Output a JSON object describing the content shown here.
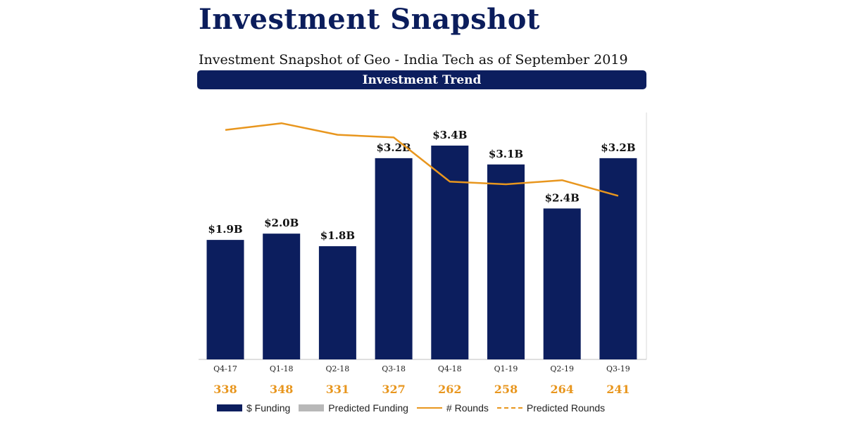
{
  "title": "Investment Snapshot",
  "subtitle": "Investment Snapshot of Geo - India Tech as of September 2019",
  "banner": "Investment Trend",
  "colors": {
    "funding_bar": "#0c1e5e",
    "predicted_bar": "#b8b8b8",
    "rounds_line": "#e8961e",
    "rounds_text": "#e8961e"
  },
  "chart_data": {
    "type": "bar",
    "title": "Investment Trend",
    "categories": [
      "Q4-17",
      "Q1-18",
      "Q2-18",
      "Q3-18",
      "Q4-18",
      "Q1-19",
      "Q2-19",
      "Q3-19"
    ],
    "series": [
      {
        "name": "$ Funding",
        "type": "bar",
        "values": [
          1.9,
          2.0,
          1.8,
          3.2,
          3.4,
          3.1,
          2.4,
          3.2
        ],
        "labels": [
          "$1.9B",
          "$2.0B",
          "$1.8B",
          "$3.2B",
          "$3.4B",
          "$3.1B",
          "$2.4B",
          "$3.2B"
        ],
        "unit": "B USD"
      },
      {
        "name": "# Rounds",
        "type": "line",
        "values": [
          338,
          348,
          331,
          327,
          262,
          258,
          264,
          241
        ]
      }
    ],
    "ylim_funding": [
      0,
      3.9
    ],
    "ylim_rounds": [
      0,
      380
    ],
    "legend": [
      "$ Funding",
      "Predicted Funding",
      "# Rounds",
      "Predicted Rounds"
    ],
    "legend_position": "bottom"
  }
}
